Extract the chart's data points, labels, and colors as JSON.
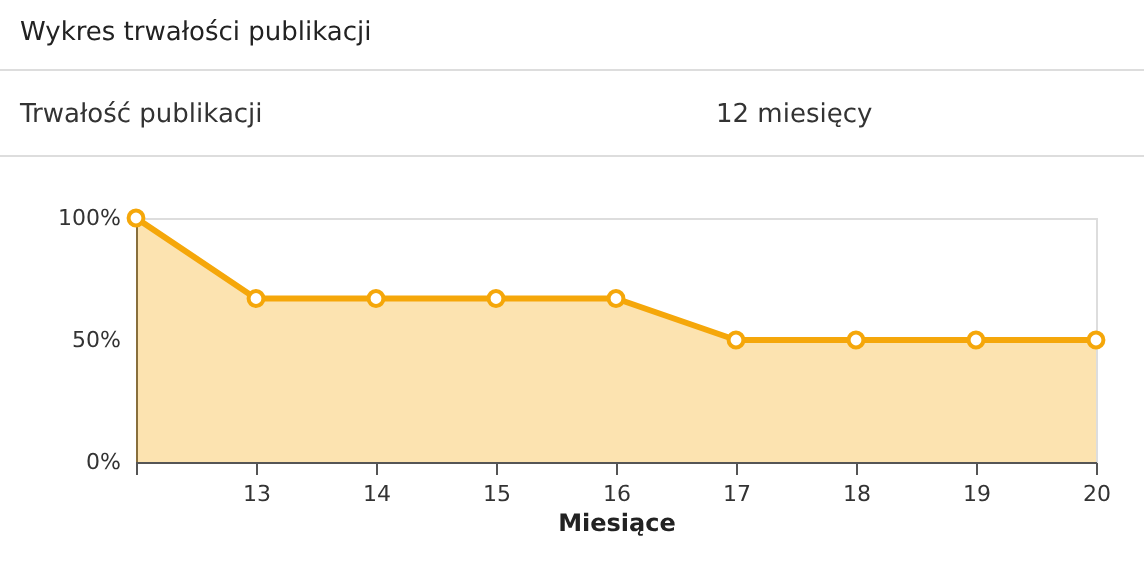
{
  "chart_data": {
    "type": "area",
    "title": "Wykres trwałości publikacji",
    "annotations": [
      "Trwałość publikacji",
      "12 miesięcy"
    ],
    "categories": [
      null,
      "13",
      "14",
      "15",
      "16",
      "17",
      "18",
      "19",
      "20"
    ],
    "series": [
      {
        "color": "#f5a70a",
        "values": [
          100,
          67,
          67,
          67,
          67,
          50,
          50,
          50,
          50
        ]
      }
    ],
    "xlabel": "Miesiące",
    "ylim": [
      0,
      100
    ],
    "yticks": [
      {
        "value": 0,
        "label": "0%"
      },
      {
        "value": 50,
        "label": "50%"
      },
      {
        "value": 100,
        "label": "100%"
      }
    ],
    "marker": "circle",
    "line_style": "solid"
  }
}
